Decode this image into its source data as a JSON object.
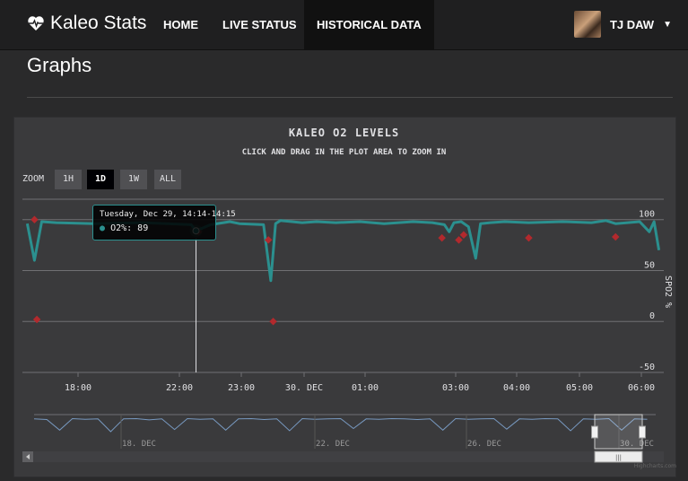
{
  "navbar": {
    "brand": "Kaleo Stats",
    "items": [
      {
        "label": "HOME"
      },
      {
        "label": "LIVE STATUS"
      },
      {
        "label": "HISTORICAL DATA",
        "active": true
      }
    ],
    "user": "TJ DAW",
    "brand_icon": "heartbeat-icon",
    "caret_icon": "caret-down-icon"
  },
  "page": {
    "title": "Graphs"
  },
  "zoom": {
    "label": "ZOOM",
    "buttons": [
      {
        "label": "1H"
      },
      {
        "label": "1D",
        "active": true
      },
      {
        "label": "1W"
      },
      {
        "label": "ALL"
      }
    ]
  },
  "tooltip": {
    "header": "Tuesday, Dec 29, 14:14-14:15",
    "series": "O2%",
    "value": "89"
  },
  "colors": {
    "series": "#2b908f",
    "flags": "#b2292d",
    "navigator": "#7798BF"
  },
  "chart_data": {
    "type": "line",
    "title": "KALEO O2 LEVELS",
    "subtitle": "CLICK AND DRAG IN THE PLOT AREA TO ZOOM IN",
    "ylabel": "SPO2 %",
    "ylim": [
      -50,
      120
    ],
    "yticks": [
      "100",
      "50",
      "0",
      "-50"
    ],
    "xticks": [
      "18:00",
      "22:00",
      "23:00",
      "30. Dec",
      "01:00",
      "03:00",
      "04:00",
      "05:00",
      "06:00"
    ],
    "navigator_ticks": [
      "18. Dec",
      "22. Dec",
      "26. Dec",
      "30. Dec"
    ],
    "credits": "Highcharts.com",
    "series": [
      {
        "name": "O2%",
        "x": [
          17.6,
          17.75,
          17.9,
          18.2,
          19.0,
          20.0,
          21.0,
          21.1,
          21.4,
          21.8,
          22.0,
          22.5,
          22.65,
          22.75,
          22.85,
          23.3,
          23.6,
          24.0,
          24.5,
          25.0,
          25.6,
          26.0,
          26.25,
          26.35,
          26.45,
          26.6,
          26.75,
          26.9,
          27.0,
          27.2,
          27.5,
          28.0,
          28.7,
          29.3,
          29.6,
          29.8,
          30.3,
          30.5,
          30.6,
          30.7
        ],
        "y": [
          96,
          60,
          98,
          97,
          96,
          97,
          95,
          89,
          95,
          98,
          96,
          95,
          40,
          96,
          99,
          97,
          98,
          97,
          98,
          96,
          98,
          97,
          95,
          88,
          97,
          98,
          93,
          62,
          96,
          97,
          98,
          97,
          98,
          97,
          99,
          96,
          98,
          88,
          98,
          70
        ]
      }
    ],
    "flags": {
      "x": [
        17.75,
        17.8,
        21.15,
        22.6,
        22.7,
        26.2,
        26.55,
        26.65,
        28.0,
        29.8
      ],
      "y": [
        100,
        2,
        88,
        80,
        0,
        82,
        80,
        85,
        82,
        83
      ]
    },
    "navigator": {
      "x": [
        16.0,
        16.3,
        16.6,
        16.9,
        17.2,
        17.5,
        17.8,
        18.1,
        18.4,
        18.7,
        19.0,
        19.3,
        19.6,
        19.9,
        20.2,
        20.5,
        20.8,
        21.1,
        21.4,
        21.7,
        22.0,
        22.3,
        22.6,
        22.9,
        23.2,
        23.5,
        23.8,
        24.1,
        24.4,
        24.7,
        25.0,
        25.3,
        25.6,
        25.9,
        26.2,
        26.5,
        26.8,
        27.1,
        27.4,
        27.7,
        28.0,
        28.3,
        28.6,
        28.9,
        29.2,
        29.5,
        29.8,
        30.1,
        30.4
      ],
      "y": [
        96,
        94,
        60,
        97,
        95,
        96,
        55,
        96,
        97,
        93,
        96,
        62,
        97,
        95,
        96,
        60,
        96,
        97,
        94,
        96,
        58,
        97,
        95,
        96,
        97,
        65,
        96,
        95,
        97,
        96,
        94,
        96,
        60,
        97,
        95,
        96,
        97,
        63,
        96,
        95,
        97,
        96,
        58,
        96,
        95,
        97,
        60,
        96,
        95
      ]
    },
    "grid": true
  }
}
